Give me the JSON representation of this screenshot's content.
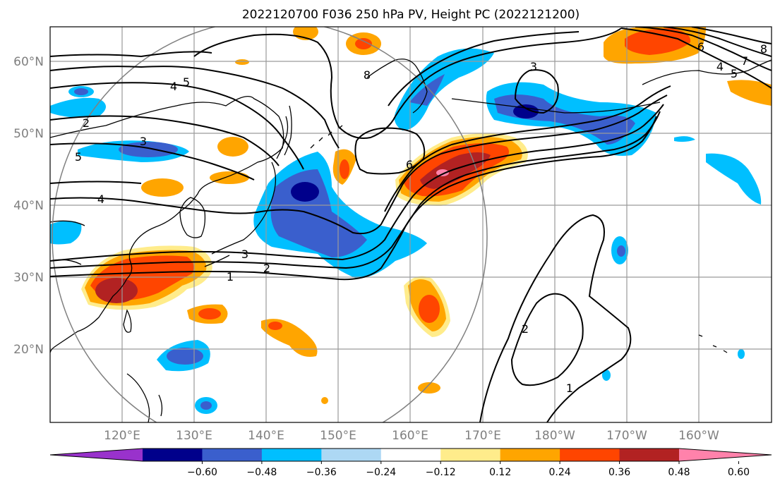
{
  "title": "2022120700 F036 250 hPa PV, Height PC (2022121200)",
  "map": {
    "lon_labels": [
      "120°E",
      "130°E",
      "140°E",
      "150°E",
      "160°E",
      "170°E",
      "180°W",
      "170°W",
      "160°W"
    ],
    "lat_labels": [
      "60°N",
      "50°N",
      "40°N",
      "30°N",
      "20°N"
    ],
    "contour_labels": [
      "1",
      "2",
      "3",
      "4",
      "5",
      "6",
      "3",
      "4",
      "5",
      "8",
      "2",
      "1",
      "2",
      "3",
      "4",
      "5",
      "6",
      "7",
      "8"
    ]
  },
  "colorbar": {
    "ticks": [
      "−0.60",
      "−0.48",
      "−0.36",
      "−0.24",
      "−0.12",
      "0.12",
      "0.24",
      "0.36",
      "0.48",
      "0.60"
    ],
    "colors": [
      "#9932cc",
      "#00008b",
      "#3a5fcd",
      "#00bfff",
      "#add8f4",
      "#ffffff",
      "#ffec8b",
      "#ffa500",
      "#ff4500",
      "#b22222",
      "#ff82ab"
    ]
  },
  "colors": {
    "grid": "#9a9a9a",
    "contour": "#000000",
    "circle": "#808080"
  }
}
